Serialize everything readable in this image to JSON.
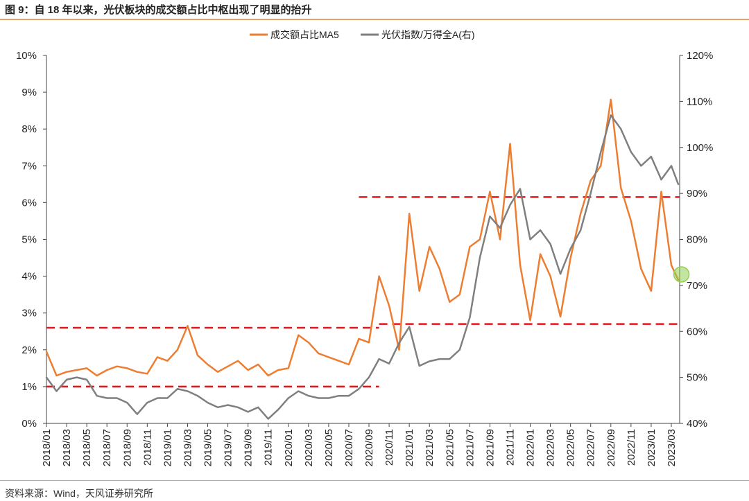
{
  "figure": {
    "title": "图 9：自 18 年以来，光伏板块的成交额占比中枢出现了明显的抬升",
    "source": "资料来源：Wind，天风证券研究所"
  },
  "colors": {
    "orange": "#ed7d31",
    "gray": "#7f7f7f",
    "reference_red": "#e3161b",
    "marker_green": "#92d050",
    "accent_rule": "#e8a06a"
  },
  "chart_data": {
    "type": "line",
    "legend": [
      "成交额占比MA5",
      "光伏指数/万得全A(右)"
    ],
    "legend_position": "top-center",
    "x_tick_labels": [
      "2018/01",
      "2018/03",
      "2018/05",
      "2018/07",
      "2018/09",
      "2018/11",
      "2019/01",
      "2019/03",
      "2019/05",
      "2019/07",
      "2019/09",
      "2019/11",
      "2020/01",
      "2020/03",
      "2020/05",
      "2020/07",
      "2020/09",
      "2020/11",
      "2021/01",
      "2021/03",
      "2021/05",
      "2021/07",
      "2021/09",
      "2021/11",
      "2022/01",
      "2022/03",
      "2022/05",
      "2022/07",
      "2022/09",
      "2022/11",
      "2023/01",
      "2023/03"
    ],
    "y_left": {
      "range": [
        0,
        10
      ],
      "ticks": [
        "0%",
        "1%",
        "2%",
        "3%",
        "4%",
        "5%",
        "6%",
        "7%",
        "8%",
        "9%",
        "10%"
      ]
    },
    "y_right": {
      "range": [
        40,
        120
      ],
      "ticks": [
        "40%",
        "50%",
        "60%",
        "70%",
        "80%",
        "90%",
        "100%",
        "110%",
        "120%"
      ]
    },
    "grid": false,
    "series": [
      {
        "name": "成交额占比MA5",
        "axis": "left",
        "x": [
          "2018/01",
          "2018/02",
          "2018/03",
          "2018/04",
          "2018/05",
          "2018/06",
          "2018/07",
          "2018/08",
          "2018/09",
          "2018/10",
          "2018/11",
          "2018/12",
          "2019/01",
          "2019/02",
          "2019/03",
          "2019/04",
          "2019/05",
          "2019/06",
          "2019/07",
          "2019/08",
          "2019/09",
          "2019/10",
          "2019/11",
          "2019/12",
          "2020/01",
          "2020/02",
          "2020/03",
          "2020/04",
          "2020/05",
          "2020/06",
          "2020/07",
          "2020/08",
          "2020/09",
          "2020/10",
          "2020/11",
          "2020/12",
          "2021/01",
          "2021/02",
          "2021/03",
          "2021/04",
          "2021/05",
          "2021/06",
          "2021/07",
          "2021/08",
          "2021/09",
          "2021/10",
          "2021/11",
          "2021/12",
          "2022/01",
          "2022/02",
          "2022/03",
          "2022/04",
          "2022/05",
          "2022/06",
          "2022/07",
          "2022/08",
          "2022/09",
          "2022/10",
          "2022/11",
          "2022/12",
          "2023/01",
          "2023/02",
          "2023/03",
          "2023/04"
        ],
        "values": [
          1.95,
          1.3,
          1.4,
          1.45,
          1.5,
          1.3,
          1.45,
          1.55,
          1.5,
          1.4,
          1.35,
          1.8,
          1.7,
          2.0,
          2.65,
          1.85,
          1.6,
          1.4,
          1.55,
          1.7,
          1.45,
          1.6,
          1.3,
          1.45,
          1.5,
          2.4,
          2.2,
          1.9,
          1.8,
          1.7,
          1.6,
          2.3,
          2.2,
          4.0,
          3.2,
          2.0,
          5.7,
          3.6,
          4.8,
          4.2,
          3.3,
          3.5,
          4.8,
          5.0,
          6.3,
          5.0,
          7.6,
          4.3,
          2.8,
          4.6,
          4.0,
          2.9,
          4.5,
          5.7,
          6.6,
          7.0,
          8.8,
          6.4,
          5.5,
          4.2,
          3.6,
          6.3,
          4.3,
          3.9
        ]
      },
      {
        "name": "光伏指数/万得全A(右)",
        "axis": "right",
        "x": [
          "2018/01",
          "2018/02",
          "2018/03",
          "2018/04",
          "2018/05",
          "2018/06",
          "2018/07",
          "2018/08",
          "2018/09",
          "2018/10",
          "2018/11",
          "2018/12",
          "2019/01",
          "2019/02",
          "2019/03",
          "2019/04",
          "2019/05",
          "2019/06",
          "2019/07",
          "2019/08",
          "2019/09",
          "2019/10",
          "2019/11",
          "2019/12",
          "2020/01",
          "2020/02",
          "2020/03",
          "2020/04",
          "2020/05",
          "2020/06",
          "2020/07",
          "2020/08",
          "2020/09",
          "2020/10",
          "2020/11",
          "2020/12",
          "2021/01",
          "2021/02",
          "2021/03",
          "2021/04",
          "2021/05",
          "2021/06",
          "2021/07",
          "2021/08",
          "2021/09",
          "2021/10",
          "2021/11",
          "2021/12",
          "2022/01",
          "2022/02",
          "2022/03",
          "2022/04",
          "2022/05",
          "2022/06",
          "2022/07",
          "2022/08",
          "2022/09",
          "2022/10",
          "2022/11",
          "2022/12",
          "2023/01",
          "2023/02",
          "2023/03",
          "2023/04"
        ],
        "values": [
          50,
          47,
          49.5,
          50,
          49.5,
          46,
          45.5,
          45.5,
          44.5,
          42,
          44.5,
          45.5,
          45.5,
          47.5,
          47,
          46,
          44.5,
          43.5,
          44,
          43.5,
          42.5,
          43.5,
          41,
          43,
          45.5,
          47,
          46,
          45.5,
          45.5,
          46,
          46,
          47.5,
          50,
          54,
          53,
          57.5,
          61,
          52.5,
          53.5,
          54,
          54,
          56,
          63,
          76,
          85,
          82.5,
          87.5,
          91,
          80,
          82,
          79,
          72.5,
          78,
          82,
          90,
          99,
          107,
          104,
          99,
          96,
          98,
          93,
          96,
          92
        ]
      }
    ],
    "reference_lines": [
      {
        "axis": "left",
        "value": 1.0,
        "x_start": "2018/01",
        "x_end": "2020/10"
      },
      {
        "axis": "left",
        "value": 2.6,
        "x_start": "2018/01",
        "x_end": "2020/10"
      },
      {
        "axis": "left",
        "value": 2.7,
        "x_start": "2020/10",
        "x_end": "2023/04"
      },
      {
        "axis": "left",
        "value": 6.15,
        "x_start": "2020/08",
        "x_end": "2023/04"
      }
    ],
    "highlight_marker": {
      "x": "2023/04",
      "axis": "left",
      "value": 4.05
    }
  }
}
